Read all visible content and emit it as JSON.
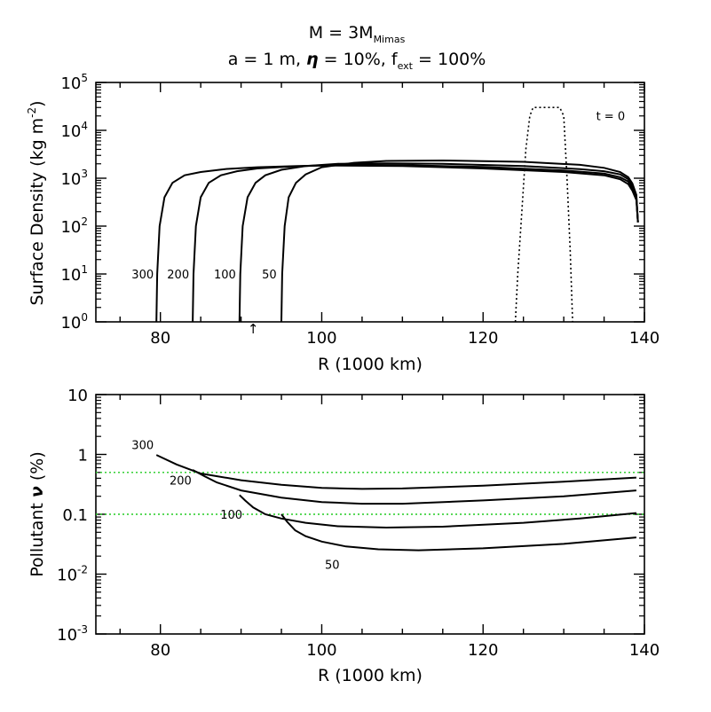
{
  "chart_data": [
    {
      "type": "line",
      "title_line1": "M = 3M",
      "title_line1_sub": "Mimas",
      "title_line2_parts": [
        "a = 1 m, ",
        "η",
        " = 10%, f",
        "ext",
        " = 100%"
      ],
      "xlabel": "R (1000 km)",
      "ylabel": "Surface Density (kg m",
      "ylabel_sup": "-2",
      "ylabel_end": ")",
      "yscale": "log",
      "xlim": [
        72,
        140
      ],
      "ylim": [
        1,
        100000
      ],
      "xticks": [
        "80",
        "100",
        "120",
        "140"
      ],
      "yticks": [
        {
          "base": "10",
          "exp": "0"
        },
        {
          "base": "10",
          "exp": "1"
        },
        {
          "base": "10",
          "exp": "2"
        },
        {
          "base": "10",
          "exp": "3"
        },
        {
          "base": "10",
          "exp": "4"
        },
        {
          "base": "10",
          "exp": "5"
        }
      ],
      "marker": {
        "x": 91.5,
        "symbol": "↑"
      },
      "annotation": "t = 0",
      "series": [
        {
          "name": "t = 0",
          "style": "dotted",
          "x": [
            124.0,
            124.3,
            124.8,
            125.3,
            125.8,
            126.2,
            129.5,
            130.0,
            130.4,
            130.8,
            131.1
          ],
          "y": [
            1,
            10,
            200,
            4000,
            20000,
            30000,
            30000,
            20000,
            1000,
            30,
            1
          ]
        },
        {
          "name": "300",
          "x": [
            79.5,
            79.6,
            79.9,
            80.5,
            81.5,
            83.0,
            85.0,
            88.0,
            92.0,
            97.0,
            100.0,
            110.0,
            120.0,
            130.0,
            135.0,
            137.0,
            138.0,
            138.5,
            139.0,
            139.2
          ],
          "y": [
            1,
            10,
            100,
            400,
            800,
            1150,
            1350,
            1550,
            1700,
            1800,
            1850,
            1800,
            1600,
            1350,
            1150,
            950,
            750,
            550,
            350,
            120
          ]
        },
        {
          "name": "200",
          "x": [
            84.0,
            84.1,
            84.4,
            85.0,
            86.0,
            87.5,
            89.5,
            92.0,
            96.0,
            100.0,
            104.0,
            110.0,
            120.0,
            130.0,
            135.0,
            137.0,
            138.0,
            138.5,
            139.0,
            139.2
          ],
          "y": [
            1,
            10,
            100,
            400,
            800,
            1150,
            1400,
            1600,
            1750,
            1850,
            1900,
            1880,
            1720,
            1450,
            1250,
            1050,
            850,
            620,
            380,
            120
          ]
        },
        {
          "name": "100",
          "x": [
            89.8,
            89.9,
            90.2,
            90.8,
            91.8,
            93.0,
            95.0,
            98.0,
            102.0,
            108.0,
            115.0,
            125.0,
            132.0,
            135.0,
            137.0,
            138.0,
            138.5,
            139.0,
            139.2
          ],
          "y": [
            1,
            10,
            100,
            400,
            800,
            1150,
            1500,
            1800,
            2000,
            2050,
            2000,
            1800,
            1550,
            1400,
            1200,
            950,
            700,
            420,
            120
          ]
        },
        {
          "name": "50",
          "x": [
            95.0,
            95.1,
            95.4,
            95.9,
            96.8,
            98.0,
            100.0,
            104.0,
            108.0,
            115.0,
            125.0,
            132.0,
            135.0,
            137.0,
            138.0,
            138.5,
            139.0,
            139.2
          ],
          "y": [
            1,
            10,
            100,
            400,
            800,
            1200,
            1700,
            2100,
            2300,
            2350,
            2200,
            1900,
            1650,
            1350,
            1050,
            780,
            450,
            120
          ]
        }
      ],
      "curve_labels": [
        {
          "text": "300",
          "x": 77.8,
          "y": 10
        },
        {
          "text": "200",
          "x": 82.2,
          "y": 10
        },
        {
          "text": "100",
          "x": 88.0,
          "y": 10
        },
        {
          "text": "50",
          "x": 93.5,
          "y": 10
        },
        {
          "text": "t = 0",
          "x": 135.8,
          "y": 20000
        }
      ]
    },
    {
      "type": "line",
      "xlabel": "R (1000 km)",
      "ylabel_pre": "Pollutant ",
      "ylabel_symbol": "ν",
      "ylabel_post": " (%)",
      "yscale": "log",
      "xlim": [
        72,
        140
      ],
      "ylim": [
        0.001,
        10
      ],
      "xticks": [
        "80",
        "100",
        "120",
        "140"
      ],
      "yticks": [
        {
          "text": "10"
        },
        {
          "text": "1"
        },
        {
          "text": "0.1"
        },
        {
          "base": "10",
          "exp": "-2"
        },
        {
          "base": "10",
          "exp": "-3"
        }
      ],
      "reference_lines": [
        {
          "y": 0.5,
          "color": "#22cc22"
        },
        {
          "y": 0.1,
          "color": "#22cc22"
        }
      ],
      "series": [
        {
          "name": "300",
          "x": [
            79.5,
            82.0,
            85.0,
            90.0,
            95.0,
            100.0,
            105.0,
            110.0,
            120.0,
            130.0,
            139.0
          ],
          "y": [
            0.98,
            0.68,
            0.48,
            0.37,
            0.31,
            0.275,
            0.265,
            0.27,
            0.3,
            0.35,
            0.41
          ]
        },
        {
          "name": "200",
          "x": [
            84.0,
            85.5,
            87.0,
            90.0,
            95.0,
            100.0,
            105.0,
            110.0,
            120.0,
            130.0,
            139.0
          ],
          "y": [
            0.55,
            0.43,
            0.34,
            0.25,
            0.19,
            0.16,
            0.15,
            0.15,
            0.17,
            0.2,
            0.25
          ]
        },
        {
          "name": "100",
          "x": [
            89.8,
            90.5,
            91.5,
            93.0,
            95.0,
            98.0,
            102.0,
            108.0,
            115.0,
            125.0,
            132.0,
            139.0
          ],
          "y": [
            0.21,
            0.17,
            0.13,
            0.1,
            0.085,
            0.072,
            0.063,
            0.06,
            0.062,
            0.072,
            0.085,
            0.105
          ]
        },
        {
          "name": "50",
          "x": [
            95.0,
            95.7,
            96.7,
            98.0,
            100.0,
            103.0,
            107.0,
            112.0,
            120.0,
            130.0,
            139.0
          ],
          "y": [
            0.1,
            0.075,
            0.054,
            0.043,
            0.035,
            0.029,
            0.026,
            0.025,
            0.027,
            0.032,
            0.041
          ]
        }
      ],
      "curve_labels": [
        {
          "text": "300",
          "x": 77.8,
          "y": 1.45
        },
        {
          "text": "200",
          "x": 82.5,
          "y": 0.37
        },
        {
          "text": "100",
          "x": 88.8,
          "y": 0.1
        },
        {
          "text": "50",
          "x": 101.3,
          "y": 0.0145
        }
      ]
    }
  ]
}
